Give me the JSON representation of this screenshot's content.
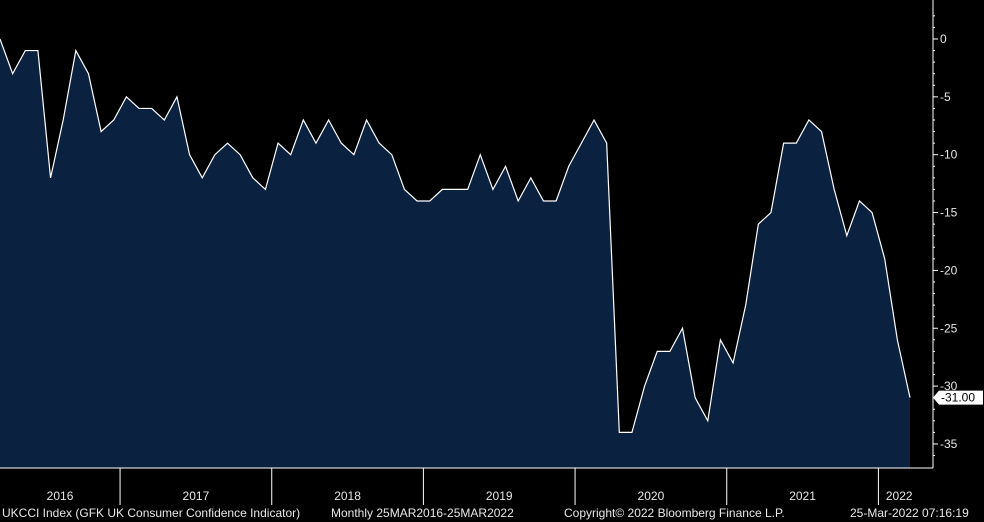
{
  "footer": {
    "series_desc": "UKCCI Index (GFK UK Consumer Confidence Indicator)",
    "range": "Monthly 25MAR2016-25MAR2022",
    "copyright": "Copyright© 2022 Bloomberg Finance L.P.",
    "timestamp": "25-Mar-2022 07:16:19"
  },
  "colors": {
    "background": "#000000",
    "fill": "#0b2140",
    "line": "#ffffff",
    "axis": "#ffffff"
  },
  "chart_data": {
    "type": "area",
    "title": "",
    "xlabel": "",
    "ylabel": "",
    "ylim": [
      -37,
      3
    ],
    "y_ticks": [
      0,
      -5,
      -10,
      -15,
      -20,
      -25,
      -30,
      -35
    ],
    "x_labels": [
      "2016",
      "2017",
      "2018",
      "2019",
      "2020",
      "2021",
      "2022"
    ],
    "last_value_label": "-31.00",
    "grid": false,
    "x": [
      "2016-03",
      "2016-04",
      "2016-05",
      "2016-06",
      "2016-07",
      "2016-08",
      "2016-09",
      "2016-10",
      "2016-11",
      "2016-12",
      "2017-01",
      "2017-02",
      "2017-03",
      "2017-04",
      "2017-05",
      "2017-06",
      "2017-07",
      "2017-08",
      "2017-09",
      "2017-10",
      "2017-11",
      "2017-12",
      "2018-01",
      "2018-02",
      "2018-03",
      "2018-04",
      "2018-05",
      "2018-06",
      "2018-07",
      "2018-08",
      "2018-09",
      "2018-10",
      "2018-11",
      "2018-12",
      "2019-01",
      "2019-02",
      "2019-03",
      "2019-04",
      "2019-05",
      "2019-06",
      "2019-07",
      "2019-08",
      "2019-09",
      "2019-10",
      "2019-11",
      "2019-12",
      "2020-01",
      "2020-02",
      "2020-03",
      "2020-04",
      "2020-05",
      "2020-06",
      "2020-07",
      "2020-08",
      "2020-09",
      "2020-10",
      "2020-11",
      "2020-12",
      "2021-01",
      "2021-02",
      "2021-03",
      "2021-04",
      "2021-05",
      "2021-06",
      "2021-07",
      "2021-08",
      "2021-09",
      "2021-10",
      "2021-11",
      "2021-12",
      "2022-01",
      "2022-02",
      "2022-03"
    ],
    "series": [
      {
        "values": [
          0,
          -3,
          -1,
          -1,
          -12,
          -7,
          -1,
          -3,
          -8,
          -7,
          -5,
          -6,
          -6,
          -7,
          -5,
          -10,
          -12,
          -10,
          -9,
          -10,
          -12,
          -13,
          -9,
          -10,
          -7,
          -9,
          -7,
          -9,
          -10,
          -7,
          -9,
          -10,
          -13,
          -14,
          -14,
          -13,
          -13,
          -13,
          -10,
          -13,
          -11,
          -14,
          -12,
          -14,
          -14,
          -11,
          -9,
          -7,
          -9,
          -34,
          -34,
          -30,
          -27,
          -27,
          -25,
          -31,
          -33,
          -26,
          -28,
          -23,
          -16,
          -15,
          -9,
          -9,
          -7,
          -8,
          -13,
          -17,
          -14,
          -15,
          -19,
          -26,
          -31
        ]
      }
    ]
  }
}
